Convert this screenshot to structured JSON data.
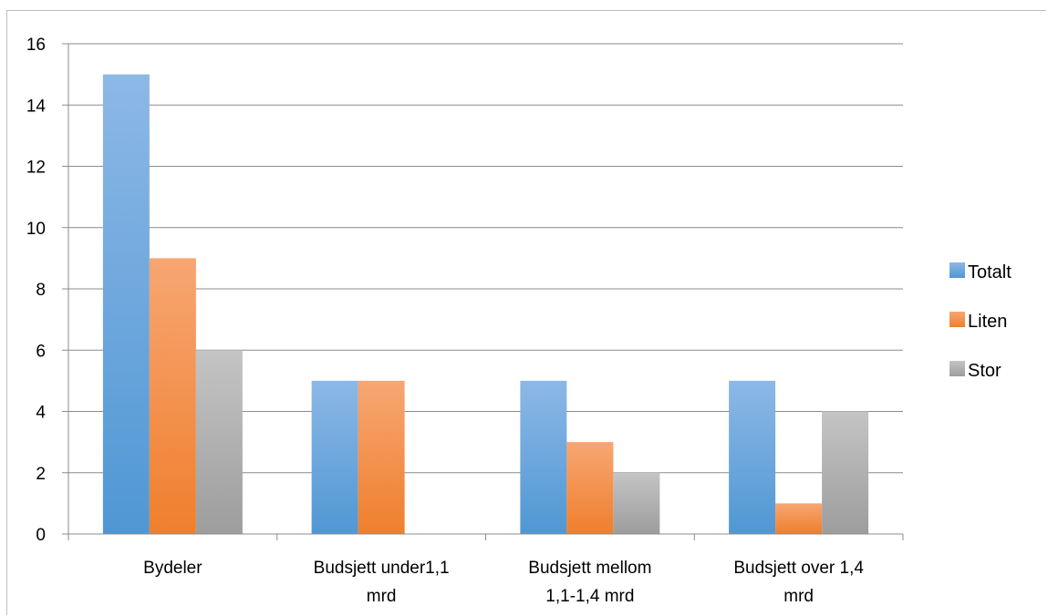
{
  "chart_data": {
    "type": "bar",
    "title": "",
    "xlabel": "",
    "ylabel": "",
    "categories": [
      [
        "Bydeler"
      ],
      [
        "Budsjett under1,1",
        "mrd"
      ],
      [
        "Budsjett mellom",
        "1,1-1,4 mrd"
      ],
      [
        "Budsjett over 1,4",
        "mrd"
      ]
    ],
    "series": [
      {
        "name": "Totalt",
        "values": [
          15,
          5,
          5,
          5
        ],
        "color_top": "#8db8e6",
        "color_bottom": "#4f97d4"
      },
      {
        "name": "Liten",
        "values": [
          9,
          5,
          3,
          1
        ],
        "color_top": "#f7a673",
        "color_bottom": "#ef7f2c"
      },
      {
        "name": "Stor",
        "values": [
          6,
          0,
          2,
          4
        ],
        "color_top": "#c4c4c4",
        "color_bottom": "#9d9d9d"
      }
    ],
    "ylim": [
      0,
      16
    ],
    "yticks": [
      0,
      2,
      4,
      6,
      8,
      10,
      12,
      14,
      16
    ],
    "grid": true,
    "legend_position": "right"
  }
}
